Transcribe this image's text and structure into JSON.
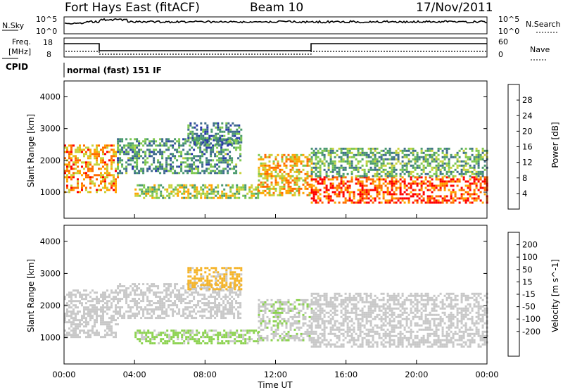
{
  "header": {
    "station": "Fort Hays East (fitACF)",
    "beam": "Beam 10",
    "date": "17/Nov/2011"
  },
  "noise_panel": {
    "left_label": "N.Sky",
    "right_label": "N.Search",
    "left_ticks": [
      "10^5",
      "10^0"
    ],
    "right_ticks": [
      "10^5",
      "10^0"
    ]
  },
  "freq_panel": {
    "left_label_1": "Freq.",
    "left_label_2": "[MHz]",
    "right_label": "Nave",
    "left_ticks": [
      "18",
      "8"
    ],
    "right_ticks": [
      "60",
      "0"
    ]
  },
  "cpid_panel": {
    "label": "CPID",
    "text": "normal (fast) 151 IF"
  },
  "colors": {
    "power_scale": [
      "#0000ff",
      "#2a3aa8",
      "#3f6d8c",
      "#4a9a6e",
      "#7ec850",
      "#c8d23c",
      "#ffa500",
      "#ff6a00",
      "#ff0000"
    ],
    "velocity_scale": [
      "#1e32c8",
      "#2b7a3e",
      "#54be38",
      "#8cd250",
      "#c8c8c8",
      "#c8c8c8",
      "#f5b428",
      "#ff8200",
      "#ff3200",
      "#ff0000"
    ]
  },
  "chart_data": [
    {
      "type": "heatmap",
      "name": "power",
      "ylabel": "Slant Range [km]",
      "ylim": [
        180,
        4500
      ],
      "yticks": [
        1000,
        2000,
        3000,
        4000
      ],
      "xlim": [
        0,
        24
      ],
      "colorbar": {
        "label": "Power [dB]",
        "range": [
          0,
          32
        ],
        "ticks": [
          4,
          8,
          12,
          16,
          20,
          24,
          28
        ]
      },
      "echo_bands": [
        {
          "start": 0,
          "end": 3,
          "range_lo": 1000,
          "range_hi": 2500,
          "level": 24
        },
        {
          "start": 3,
          "end": 10,
          "range_lo": 1600,
          "range_hi": 2700,
          "level": 12
        },
        {
          "start": 4,
          "end": 11,
          "range_lo": 800,
          "range_hi": 1250,
          "level": 18
        },
        {
          "start": 7,
          "end": 10,
          "range_lo": 2500,
          "range_hi": 3200,
          "level": 10
        },
        {
          "start": 11,
          "end": 14,
          "range_lo": 900,
          "range_hi": 2200,
          "level": 22
        },
        {
          "start": 14,
          "end": 24,
          "range_lo": 700,
          "range_hi": 1500,
          "level": 28
        },
        {
          "start": 14,
          "end": 24,
          "range_lo": 1500,
          "range_hi": 2400,
          "level": 14
        }
      ]
    },
    {
      "type": "heatmap",
      "name": "velocity",
      "ylabel": "Slant Range [km]",
      "ylim": [
        180,
        4500
      ],
      "yticks": [
        1000,
        2000,
        3000,
        4000
      ],
      "xlabel": "Time UT",
      "xlim": [
        0,
        24
      ],
      "xticks": [
        "00:00",
        "04:00",
        "08:00",
        "12:00",
        "16:00",
        "20:00",
        "00:00"
      ],
      "colorbar": {
        "label": "Velocity [m s^-1]",
        "range": [
          -250,
          250
        ],
        "ticks": [
          200,
          100,
          50,
          15,
          -15,
          -50,
          -100,
          -200
        ]
      },
      "echo_bands": [
        {
          "start": 0,
          "end": 3,
          "range_lo": 1000,
          "range_hi": 2500,
          "velocity": 0
        },
        {
          "start": 3,
          "end": 10,
          "range_lo": 1600,
          "range_hi": 2700,
          "velocity": 5
        },
        {
          "start": 4,
          "end": 11,
          "range_lo": 800,
          "range_hi": 1250,
          "velocity": 60
        },
        {
          "start": 7,
          "end": 10,
          "range_lo": 2500,
          "range_hi": 3200,
          "velocity": -60
        },
        {
          "start": 11,
          "end": 14,
          "range_lo": 900,
          "range_hi": 2200,
          "velocity": 40
        },
        {
          "start": 14,
          "end": 24,
          "range_lo": 700,
          "range_hi": 2400,
          "velocity": 0
        }
      ]
    }
  ]
}
